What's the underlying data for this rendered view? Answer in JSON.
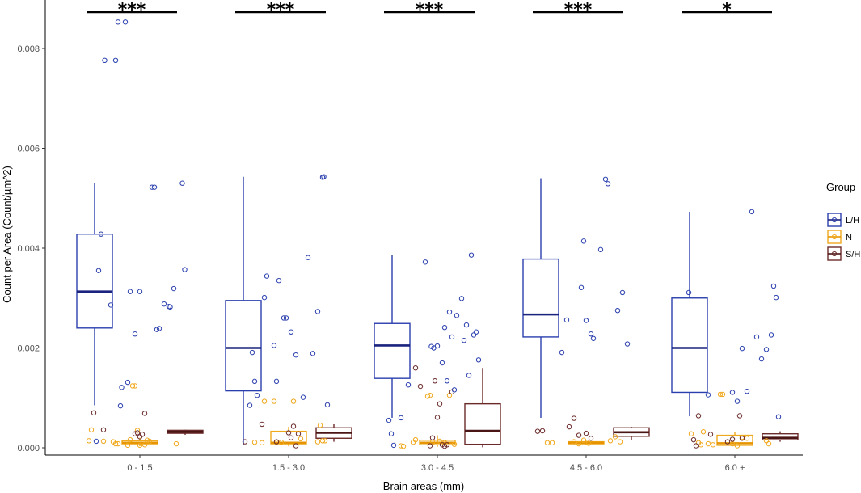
{
  "chart_data": {
    "type": "box",
    "title": "",
    "xlabel": "Brain areas (mm)",
    "ylabel": "Count per Area (Count/µm^2)",
    "ylim": [
      0,
      0.0089
    ],
    "yticks": [
      "0.000",
      "0.002",
      "0.004",
      "0.006",
      "0.008"
    ],
    "ytick_values": [
      0,
      0.002,
      0.004,
      0.006,
      0.008
    ],
    "categories": [
      "0 - 1.5",
      "1.5 - 3.0",
      "3.0 - 4.5",
      "4.5 - 6.0",
      "6.0 +"
    ],
    "significance": [
      "***",
      "***",
      "***",
      "***",
      "*"
    ],
    "legend": {
      "title": "Group",
      "entries": [
        {
          "label": "L/H",
          "color": "#2a3fae",
          "median_color": "#1a237e"
        },
        {
          "label": "N",
          "color": "#f0a81c",
          "median_color": "#e69500"
        },
        {
          "label": "S/H",
          "color": "#6b2a2a",
          "median_color": "#4a1515"
        }
      ]
    },
    "series": [
      {
        "name": "L/H",
        "boxes": [
          {
            "min": 0.00085,
            "q1": 0.0024,
            "median": 0.00313,
            "q3": 0.00428,
            "max": 0.0053
          },
          {
            "min": 5e-05,
            "q1": 0.00114,
            "median": 0.002,
            "q3": 0.00295,
            "max": 0.00543
          },
          {
            "min": 0.0006,
            "q1": 0.00139,
            "median": 0.00205,
            "q3": 0.00249,
            "max": 0.00387
          },
          {
            "min": 0.0006,
            "q1": 0.00222,
            "median": 0.00267,
            "q3": 0.00378,
            "max": 0.0054
          },
          {
            "min": 0.00063,
            "q1": 0.00111,
            "median": 0.002,
            "q3": 0.003,
            "max": 0.00473
          }
        ],
        "points": [
          [
            [
              -0.36,
              0.00013
            ],
            [
              -0.34,
              0.00355
            ],
            [
              -0.32,
              0.00428
            ],
            [
              -0.29,
              0.00776
            ],
            [
              -0.24,
              0.00286
            ],
            [
              -0.2,
              0.00776
            ],
            [
              -0.18,
              0.00853
            ],
            [
              -0.16,
              0.00084
            ],
            [
              -0.15,
              0.00121
            ],
            [
              -0.12,
              0.00853
            ],
            [
              -0.1,
              0.00131
            ],
            [
              -0.08,
              0.00313
            ],
            [
              -0.04,
              0.00228
            ],
            [
              0.0,
              0.00313
            ],
            [
              0.1,
              0.00522
            ],
            [
              0.12,
              0.00522
            ],
            [
              0.14,
              0.00237
            ],
            [
              0.16,
              0.00239
            ],
            [
              0.2,
              0.00288
            ],
            [
              0.24,
              0.00283
            ],
            [
              0.25,
              0.00282
            ],
            [
              0.28,
              0.00319
            ],
            [
              0.35,
              0.0053
            ],
            [
              0.37,
              0.00357
            ]
          ],
          [
            [
              -0.32,
              0.00085
            ],
            [
              -0.3,
              0.00191
            ],
            [
              -0.28,
              0.00133
            ],
            [
              -0.26,
              0.00105
            ],
            [
              -0.2,
              0.00301
            ],
            [
              -0.18,
              0.00344
            ],
            [
              -0.12,
              0.00205
            ],
            [
              -0.1,
              0.00133
            ],
            [
              -0.08,
              0.00335
            ],
            [
              -0.04,
              0.0026
            ],
            [
              -0.02,
              0.0026
            ],
            [
              0.02,
              0.00232
            ],
            [
              0.06,
              0.00186
            ],
            [
              0.12,
              0.00101
            ],
            [
              0.16,
              0.00381
            ],
            [
              0.2,
              0.00189
            ],
            [
              0.24,
              0.00273
            ],
            [
              0.28,
              0.00542
            ],
            [
              0.29,
              0.00543
            ],
            [
              0.32,
              0.00086
            ]
          ],
          [
            [
              -0.4,
              0.00055
            ],
            [
              -0.38,
              0.00028
            ],
            [
              -0.36,
              5e-05
            ],
            [
              -0.3,
              0.0006
            ],
            [
              -0.24,
              0.00126
            ],
            [
              -0.1,
              0.00372
            ],
            [
              -0.05,
              0.00203
            ],
            [
              -0.03,
              0.002
            ],
            [
              0.0,
              0.00204
            ],
            [
              0.04,
              0.0017
            ],
            [
              0.06,
              0.00241
            ],
            [
              0.08,
              0.00134
            ],
            [
              0.1,
              0.00272
            ],
            [
              0.12,
              0.00222
            ],
            [
              0.14,
              0.00116
            ],
            [
              0.16,
              0.00265
            ],
            [
              0.2,
              0.00299
            ],
            [
              0.22,
              0.00215
            ],
            [
              0.24,
              0.00246
            ],
            [
              0.26,
              0.00145
            ],
            [
              0.28,
              0.00386
            ],
            [
              0.3,
              0.00226
            ],
            [
              0.32,
              0.00232
            ],
            [
              0.34,
              0.00176
            ]
          ],
          [
            [
              -0.2,
              0.00191
            ],
            [
              -0.16,
              0.00256
            ],
            [
              -0.04,
              0.00321
            ],
            [
              -0.02,
              0.00414
            ],
            [
              0.0,
              0.00255
            ],
            [
              0.04,
              0.00228
            ],
            [
              0.06,
              0.00219
            ],
            [
              0.12,
              0.00397
            ],
            [
              0.16,
              0.00538
            ],
            [
              0.18,
              0.00529
            ],
            [
              0.26,
              0.00275
            ],
            [
              0.3,
              0.00311
            ],
            [
              0.34,
              0.00208
            ]
          ],
          [
            [
              -0.38,
              0.00311
            ],
            [
              -0.22,
              0.00106
            ],
            [
              -0.02,
              0.00111
            ],
            [
              0.02,
              0.00093
            ],
            [
              0.06,
              0.00199
            ],
            [
              0.1,
              0.00113
            ],
            [
              0.14,
              0.00473
            ],
            [
              0.18,
              0.00222
            ],
            [
              0.22,
              0.00178
            ],
            [
              0.26,
              0.00197
            ],
            [
              0.3,
              0.00226
            ],
            [
              0.32,
              0.00324
            ],
            [
              0.34,
              0.00301
            ],
            [
              0.36,
              0.00062
            ]
          ]
        ]
      },
      {
        "name": "N",
        "boxes": [
          {
            "min": 3e-05,
            "q1": 8e-05,
            "median": 0.0001,
            "q3": 0.00014,
            "max": 0.0002
          },
          {
            "min": 3e-05,
            "q1": 8e-05,
            "median": 0.0001,
            "q3": 0.00033,
            "max": 0.00042
          },
          {
            "min": 2e-05,
            "q1": 6e-05,
            "median": 0.0001,
            "q3": 0.00015,
            "max": 0.00025
          },
          {
            "min": 5e-05,
            "q1": 8e-05,
            "median": 0.0001,
            "q3": 0.00012,
            "max": 0.00014
          },
          {
            "min": 3e-05,
            "q1": 5e-05,
            "median": 9e-05,
            "q3": 0.00025,
            "max": 0.00031
          }
        ],
        "points": [
          [
            [
              -0.42,
              0.00014
            ],
            [
              -0.4,
              0.00036
            ],
            [
              -0.3,
              0.00013
            ],
            [
              -0.22,
              0.00012
            ],
            [
              -0.2,
              8e-05
            ],
            [
              -0.18,
              8e-05
            ],
            [
              -0.1,
              5e-05
            ],
            [
              -0.08,
              0.00016
            ],
            [
              -0.06,
              0.00124
            ],
            [
              -0.04,
              0.00124
            ],
            [
              -0.02,
              0.00035
            ],
            [
              0.0,
              5e-05
            ],
            [
              0.04,
              6e-05
            ],
            [
              0.06,
              0.00015
            ],
            [
              0.08,
              0.00013
            ],
            [
              0.3,
              8e-05
            ]
          ],
          [
            [
              -0.28,
              0.00011
            ],
            [
              -0.22,
              0.0001
            ],
            [
              -0.2,
              0.00093
            ],
            [
              -0.12,
              0.00093
            ],
            [
              -0.1,
              0.00011
            ],
            [
              -0.06,
              0.00011
            ],
            [
              0.04,
              0.00093
            ],
            [
              0.1,
              0.00018
            ],
            [
              0.24,
              0.00012
            ],
            [
              0.26,
              0.00045
            ],
            [
              0.28,
              0.00014
            ],
            [
              0.3,
              0.00014
            ]
          ],
          [
            [
              -0.3,
              4e-05
            ],
            [
              -0.28,
              3e-05
            ],
            [
              -0.2,
              0.00011
            ],
            [
              -0.18,
              0.00016
            ],
            [
              -0.08,
              0.00103
            ],
            [
              -0.06,
              0.00105
            ],
            [
              -0.04,
              0.00011
            ],
            [
              0.02,
              0.00013
            ],
            [
              0.06,
              0.0001
            ],
            [
              0.1,
              0.00105
            ],
            [
              0.14,
              7e-05
            ]
          ],
          [
            [
              -0.32,
              0.0001
            ],
            [
              -0.28,
              0.0001
            ],
            [
              -0.1,
              0.00012
            ],
            [
              -0.06,
              8e-05
            ],
            [
              -0.02,
              0.00015
            ],
            [
              0.02,
              9e-05
            ],
            [
              0.2,
              0.00014
            ],
            [
              0.24,
              0.00022
            ],
            [
              0.28,
              0.00012
            ]
          ],
          [
            [
              -0.36,
              0.00028
            ],
            [
              -0.3,
              0.0001
            ],
            [
              -0.28,
              6e-05
            ],
            [
              -0.26,
              0.00032
            ],
            [
              -0.22,
              8e-05
            ],
            [
              -0.18,
              6e-05
            ],
            [
              -0.12,
              0.00107
            ],
            [
              -0.1,
              0.00107
            ],
            [
              -0.02,
              8e-05
            ],
            [
              0.02,
              4e-05
            ],
            [
              0.06,
              0.00021
            ],
            [
              0.1,
              0.00019
            ],
            [
              0.26,
              0.00014
            ],
            [
              0.28,
              8e-05
            ]
          ]
        ]
      },
      {
        "name": "S/H",
        "boxes": [
          {
            "min": 0.00026,
            "q1": 0.00029,
            "median": 0.00032,
            "q3": 0.00035,
            "max": 0.00036
          },
          {
            "min": 0.00012,
            "q1": 0.00019,
            "median": 0.0003,
            "q3": 0.0004,
            "max": 0.00047
          },
          {
            "min": 1e-05,
            "q1": 7e-05,
            "median": 0.00034,
            "q3": 0.00088,
            "max": 0.0016
          },
          {
            "min": 0.00016,
            "q1": 0.00023,
            "median": 0.00031,
            "q3": 0.0004,
            "max": 0.00042
          },
          {
            "min": 0.00012,
            "q1": 0.00016,
            "median": 0.0002,
            "q3": 0.00028,
            "max": 0.00033
          }
        ],
        "points": [
          [
            [
              -0.38,
              0.0007
            ],
            [
              -0.3,
              0.00036
            ],
            [
              -0.04,
              0.00028
            ],
            [
              -0.02,
              0.0003
            ],
            [
              0.0,
              0.00022
            ],
            [
              0.02,
              0.00027
            ],
            [
              0.04,
              0.00069
            ]
          ],
          [
            [
              -0.36,
              0.00012
            ],
            [
              -0.22,
              0.00047
            ],
            [
              -0.1,
              0.00012
            ],
            [
              0.0,
              0.0003
            ],
            [
              0.02,
              0.0002
            ],
            [
              0.04,
              0.00043
            ],
            [
              0.06,
              4e-05
            ],
            [
              0.08,
              0.00028
            ]
          ],
          [
            [
              -0.18,
              0.0016
            ],
            [
              -0.14,
              0.00123
            ],
            [
              -0.06,
              4e-05
            ],
            [
              -0.04,
              0.0002
            ],
            [
              -0.02,
              0.00134
            ],
            [
              0.0,
              0.00061
            ],
            [
              0.02,
              0.00088
            ],
            [
              0.04,
              6e-05
            ],
            [
              0.06,
              3e-05
            ],
            [
              0.08,
              6e-05
            ],
            [
              0.12,
              0.00112
            ]
          ],
          [
            [
              -0.4,
              0.00033
            ],
            [
              -0.36,
              0.00034
            ],
            [
              -0.14,
              0.00042
            ],
            [
              -0.1,
              0.00059
            ],
            [
              -0.06,
              0.00025
            ],
            [
              0.0,
              0.00029
            ],
            [
              0.04,
              0.00019
            ]
          ],
          [
            [
              -0.34,
              0.00016
            ],
            [
              -0.32,
              4e-05
            ],
            [
              -0.3,
              0.00064
            ],
            [
              -0.2,
              0.00027
            ],
            [
              -0.06,
              0.00012
            ],
            [
              -0.02,
              0.00017
            ],
            [
              0.04,
              0.00064
            ],
            [
              0.06,
              0.00019
            ]
          ]
        ]
      }
    ]
  }
}
